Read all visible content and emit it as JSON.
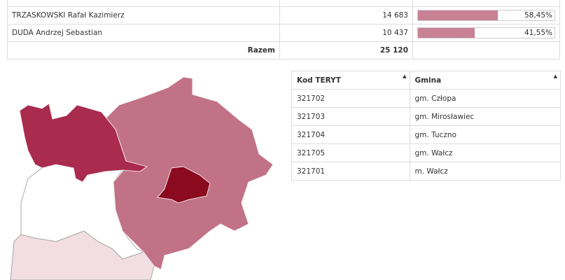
{
  "results": {
    "rows": [
      {
        "name": "TRZASKOWSKI Rafał Kazimierz",
        "votes": "14 683",
        "percent": {
          "value": 58.45,
          "label": "58,45%"
        }
      },
      {
        "name": "DUDA Andrzej Sebastian",
        "votes": "10 437",
        "percent": {
          "value": 41.55,
          "label": "41,55%"
        }
      }
    ],
    "total_label": "Razem",
    "total": "25 120"
  },
  "table": {
    "headers": [
      "Kod TERYT",
      "Gmina"
    ],
    "rows": [
      [
        "321702",
        "gm. Człopa"
      ],
      [
        "321703",
        "gm. Mirosławiec"
      ],
      [
        "321704",
        "gm. Tuczno"
      ],
      [
        "321705",
        "gm. Wałcz"
      ],
      [
        "321701",
        "m. Wałcz"
      ]
    ]
  }
}
